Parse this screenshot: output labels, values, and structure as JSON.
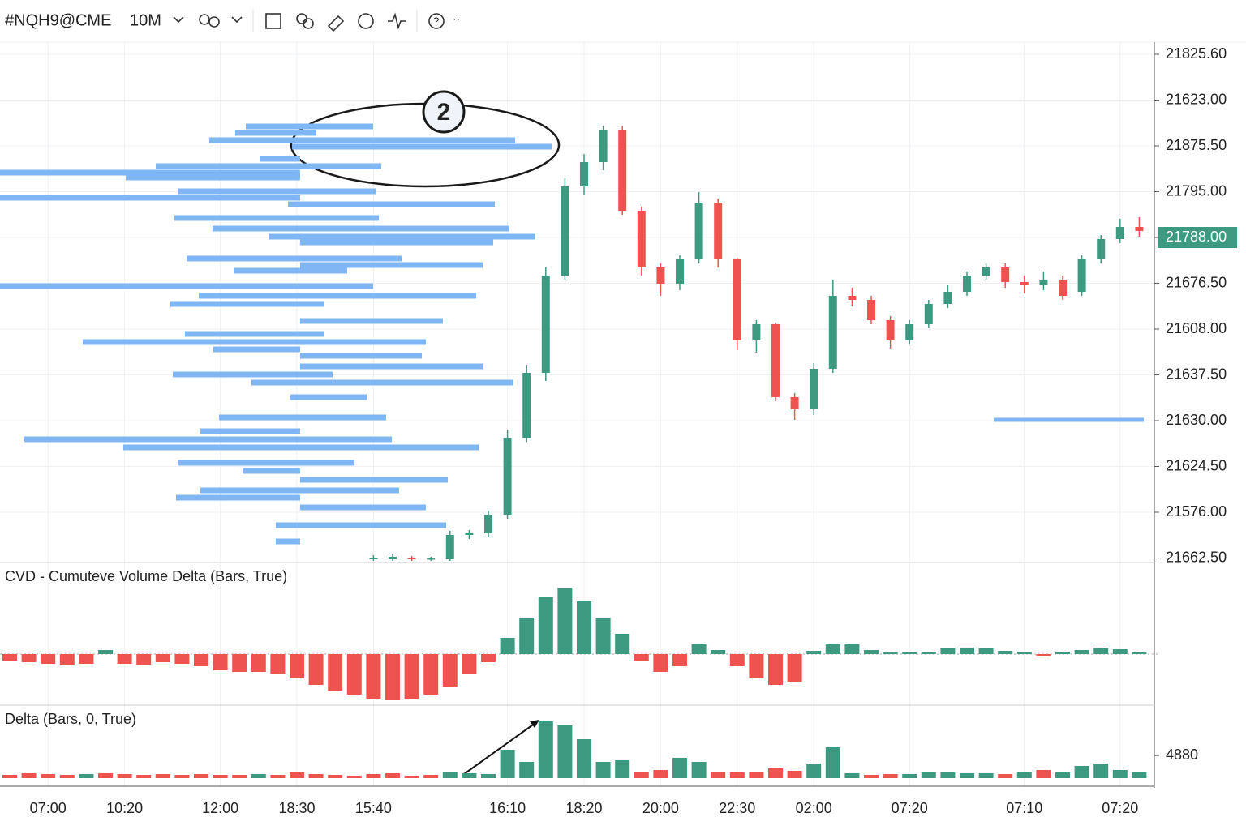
{
  "toolbar": {
    "symbol": "#NQH9@CME",
    "interval": "10M"
  },
  "chart_data": [
    {
      "type": "candlestick",
      "annotation": "2",
      "categories": [
        null,
        null,
        "07:00",
        null,
        null,
        null,
        "10:20",
        null,
        null,
        null,
        null,
        "12:00",
        null,
        null,
        null,
        "18:30",
        null,
        null,
        null,
        "15:40",
        null,
        null,
        null,
        null,
        null,
        null,
        "16:10",
        null,
        null,
        null,
        "18:20",
        null,
        null,
        null,
        "20:00",
        null,
        null,
        null,
        "22:30",
        null,
        null,
        null,
        "02:00",
        null,
        null,
        null,
        null,
        "07:20",
        null,
        null,
        null,
        null,
        null,
        "07:10",
        null,
        null,
        null,
        null,
        "07:20",
        null
      ],
      "open": [
        null,
        null,
        null,
        null,
        null,
        null,
        null,
        null,
        null,
        null,
        null,
        null,
        null,
        null,
        null,
        null,
        null,
        null,
        null,
        21511,
        21511,
        21512,
        21511,
        21511,
        21526,
        21527,
        21538.5,
        21586,
        21626,
        21686,
        21741,
        21756,
        21776,
        21726,
        21691,
        21681,
        21696,
        21731,
        21696,
        21646,
        21656,
        21611,
        21603.5,
        21628.5,
        21673.5,
        21671,
        21658.5,
        21646,
        21656,
        21668.5,
        21676,
        21686,
        21691,
        21682,
        21680,
        21683.5,
        21676,
        21696,
        21708.5,
        21716
      ],
      "high": [
        null,
        null,
        null,
        null,
        null,
        null,
        null,
        null,
        null,
        null,
        null,
        null,
        null,
        null,
        null,
        null,
        null,
        null,
        null,
        21513.5,
        21514,
        21513,
        21512.5,
        21528.5,
        21529,
        21541,
        21591,
        21631,
        21691,
        21746,
        21761,
        21778.5,
        21778.5,
        21728.5,
        21693.5,
        21698.5,
        21737.5,
        21733.5,
        21697,
        21658.5,
        21657,
        21613.5,
        21632,
        21683.5,
        21678.5,
        21673.5,
        21661,
        21658.5,
        21671,
        21680,
        21688.5,
        21693.5,
        21693.5,
        21686,
        21688.5,
        21686,
        21698.5,
        21711,
        21721,
        21722
      ],
      "low": [
        null,
        null,
        null,
        null,
        null,
        null,
        null,
        null,
        null,
        null,
        null,
        null,
        null,
        null,
        null,
        null,
        null,
        null,
        null,
        21510,
        21510,
        21510,
        21510,
        21510,
        21523.5,
        21525,
        21536,
        21583.5,
        21621,
        21683.5,
        21736,
        21751,
        21723.5,
        21686,
        21673.5,
        21677,
        21693.5,
        21691,
        21640,
        21638.5,
        21608.5,
        21597,
        21600,
        21626,
        21667,
        21656,
        21641,
        21643.5,
        21653.5,
        21666,
        21673.5,
        21683.5,
        21678.5,
        21675,
        21677,
        21671,
        21673.5,
        21693.5,
        21706,
        21710
      ],
      "close": [
        null,
        null,
        null,
        null,
        null,
        null,
        null,
        null,
        null,
        null,
        null,
        null,
        null,
        null,
        null,
        null,
        null,
        null,
        null,
        21512,
        21512.5,
        21511,
        21511.5,
        21526,
        21527,
        21538.5,
        21586,
        21626,
        21686,
        21741,
        21756,
        21776,
        21726,
        21691,
        21681,
        21696,
        21731,
        21696,
        21646,
        21656,
        21611,
        21603.5,
        21628.5,
        21673.5,
        21671,
        21658.5,
        21646,
        21656,
        21668.5,
        21676,
        21686,
        21691,
        21682,
        21680,
        21683.5,
        21673.5,
        21696,
        21708.5,
        21716,
        21713.5
      ],
      "up_color": "#3d9a80",
      "down_color": "#ef5350",
      "ylim": [
        21510,
        21830
      ],
      "price_labels": [
        "21825.60",
        "21623.00",
        "21875.50",
        "21795.00",
        "21788.00",
        "21676.50",
        "21608.00",
        "21637.50",
        "21630.00",
        "21624.50",
        "21576.00",
        "21662.50"
      ],
      "level": 21597,
      "profile": {
        "color": "#7fb7f5",
        "prices": [
          21778,
          21774,
          21769.5,
          21765.5,
          21758,
          21753.5,
          21749.5,
          21746.5,
          21738,
          21734,
          21730,
          21721.5,
          21715,
          21710,
          21706.5,
          21696.5,
          21692.5,
          21689,
          21679.5,
          21673.5,
          21668.5,
          21658,
          21650,
          21645,
          21640.5,
          21636.5,
          21630,
          21625,
          21620,
          21611,
          21598.5,
          21590,
          21585,
          21580,
          21570.5,
          21565.5,
          21560,
          21553.5,
          21549,
          21543,
          21532,
          21522
        ],
        "sell": [
          67,
          80,
          112,
          10,
          50,
          178,
          370,
          215,
          150,
          370,
          15,
          155,
          108,
          38,
          0,
          140,
          0,
          82,
          370,
          125,
          160,
          0,
          142,
          268,
          107,
          0,
          0,
          157,
          60,
          12,
          100,
          123,
          340,
          218,
          150,
          70,
          0,
          123,
          153,
          0,
          30,
          30
        ],
        "buy": [
          90,
          20,
          265,
          310,
          0,
          100,
          0,
          0,
          93,
          0,
          240,
          97,
          258,
          290,
          238,
          125,
          225,
          58,
          90,
          217,
          30,
          176,
          30,
          155,
          0,
          150,
          225,
          40,
          263,
          82,
          106,
          0,
          113,
          220,
          67,
          0,
          182,
          122,
          0,
          155,
          180,
          0
        ]
      }
    },
    {
      "type": "bar",
      "title": "CVD - Cumuteve Volume Delta (Bars, True)",
      "values": [
        -8,
        -10,
        -12,
        -14,
        -12,
        5,
        -12,
        -13,
        -10,
        -12,
        -15,
        -20,
        -22,
        -22,
        -24,
        -30,
        -38,
        -45,
        -50,
        -55,
        -57,
        -55,
        -50,
        -40,
        -25,
        -10,
        20,
        45,
        70,
        82,
        65,
        45,
        25,
        -8,
        -22,
        -15,
        12,
        5,
        -15,
        -30,
        -38,
        -35,
        4,
        12,
        12,
        5,
        2,
        2,
        3,
        7,
        8,
        7,
        4,
        3,
        -2,
        3,
        5,
        8,
        6,
        2
      ],
      "ylim": [
        -60,
        90
      ],
      "up_color": "#3d9a80",
      "down_color": "#ef5350"
    },
    {
      "type": "bar",
      "title": "Delta (Bars, 0, True)",
      "values": [
        700,
        1050,
        875,
        700,
        875,
        1050,
        875,
        700,
        875,
        700,
        875,
        700,
        700,
        875,
        700,
        1225,
        875,
        700,
        525,
        875,
        1050,
        525,
        700,
        1400,
        1050,
        875,
        6125,
        3500,
        12250,
        11375,
        8400,
        3500,
        3850,
        1400,
        1750,
        4375,
        3500,
        1400,
        1225,
        1400,
        2100,
        1575,
        3150,
        6650,
        1050,
        700,
        875,
        875,
        1225,
        1400,
        1050,
        1050,
        875,
        1225,
        1750,
        1225,
        2625,
        3150,
        1750,
        1225
      ],
      "colors": [
        "#ef5350",
        "#ef5350",
        "#ef5350",
        "#ef5350",
        "#3d9a80",
        "#ef5350",
        "#ef5350",
        "#ef5350",
        "#ef5350",
        "#ef5350",
        "#ef5350",
        "#ef5350",
        "#ef5350",
        "#3d9a80",
        "#ef5350",
        "#ef5350",
        "#ef5350",
        "#ef5350",
        "#ef5350",
        "#ef5350",
        "#ef5350",
        "#ef5350",
        "#ef5350",
        "#3d9a80",
        "#3d9a80",
        "#3d9a80",
        "#3d9a80",
        "#3d9a80",
        "#3d9a80",
        "#3d9a80",
        "#3d9a80",
        "#3d9a80",
        "#3d9a80",
        "#ef5350",
        "#ef5350",
        "#3d9a80",
        "#3d9a80",
        "#ef5350",
        "#ef5350",
        "#ef5350",
        "#ef5350",
        "#ef5350",
        "#3d9a80",
        "#3d9a80",
        "#3d9a80",
        "#ef5350",
        "#ef5350",
        "#3d9a80",
        "#3d9a80",
        "#3d9a80",
        "#3d9a80",
        "#3d9a80",
        "#ef5350",
        "#3d9a80",
        "#ef5350",
        "#3d9a80",
        "#3d9a80",
        "#3d9a80",
        "#3d9a80",
        "#3d9a80"
      ],
      "ylim": [
        0,
        14000
      ],
      "yticks": [
        4880
      ]
    }
  ]
}
